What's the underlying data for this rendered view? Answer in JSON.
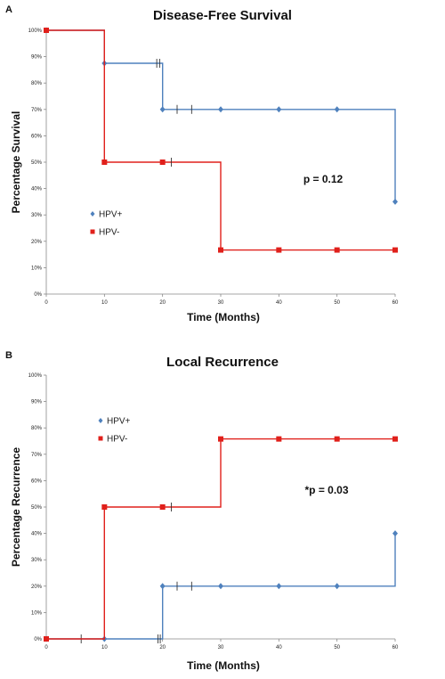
{
  "chart_data": [
    {
      "type": "line",
      "panel_label": "A",
      "title": "Disease-Free Survival",
      "xlabel": "Time (Months)",
      "ylabel": "Percentage Survival",
      "xlim": [
        0,
        60
      ],
      "ylim": [
        0,
        100
      ],
      "x_ticks": [
        "0",
        "10",
        "20",
        "30",
        "40",
        "50",
        "60"
      ],
      "y_ticks": [
        "0%",
        "10%",
        "20%",
        "30%",
        "40%",
        "50%",
        "60%",
        "70%",
        "80%",
        "90%",
        "100%"
      ],
      "annotation": "p = 0.12",
      "legend_position": "left-center",
      "series": [
        {
          "name": "HPV+",
          "color": "#4f81bd",
          "marker": "diamond",
          "step_points": [
            [
              0,
              100
            ],
            [
              10,
              100
            ],
            [
              10,
              87.5
            ],
            [
              20,
              87.5
            ],
            [
              20,
              70
            ],
            [
              60,
              70
            ],
            [
              60,
              35
            ]
          ],
          "markers": [
            [
              0,
              100
            ],
            [
              10,
              87.5
            ],
            [
              20,
              70
            ],
            [
              30,
              70
            ],
            [
              40,
              70
            ],
            [
              50,
              70
            ],
            [
              60,
              35
            ]
          ],
          "censored": [
            [
              19,
              87.5
            ],
            [
              19.5,
              87.5
            ],
            [
              22.5,
              70
            ],
            [
              25,
              70
            ]
          ]
        },
        {
          "name": "HPV-",
          "color": "#e0201b",
          "marker": "square",
          "step_points": [
            [
              0,
              100
            ],
            [
              10,
              100
            ],
            [
              10,
              50
            ],
            [
              30,
              50
            ],
            [
              30,
              16.7
            ],
            [
              60,
              16.7
            ]
          ],
          "markers": [
            [
              0,
              100
            ],
            [
              10,
              50
            ],
            [
              20,
              50
            ],
            [
              30,
              16.7
            ],
            [
              40,
              16.7
            ],
            [
              50,
              16.7
            ],
            [
              60,
              16.7
            ]
          ],
          "censored": [
            [
              21.5,
              50
            ]
          ]
        }
      ]
    },
    {
      "type": "line",
      "panel_label": "B",
      "title": "Local Recurrence",
      "xlabel": "Time (Months)",
      "ylabel": "Percentage Recurrence",
      "xlim": [
        0,
        60
      ],
      "ylim": [
        0,
        100
      ],
      "x_ticks": [
        "0",
        "10",
        "20",
        "30",
        "40",
        "50",
        "60"
      ],
      "y_ticks": [
        "0%",
        "10%",
        "20%",
        "30%",
        "40%",
        "50%",
        "60%",
        "70%",
        "80%",
        "90%",
        "100%"
      ],
      "annotation": "*p = 0.03",
      "legend_position": "top-left",
      "series": [
        {
          "name": "HPV+",
          "color": "#4f81bd",
          "marker": "diamond",
          "step_points": [
            [
              0,
              0
            ],
            [
              20,
              0
            ],
            [
              20,
              20
            ],
            [
              60,
              20
            ],
            [
              60,
              40
            ]
          ],
          "markers": [
            [
              0,
              0
            ],
            [
              10,
              0
            ],
            [
              20,
              20
            ],
            [
              30,
              20
            ],
            [
              40,
              20
            ],
            [
              50,
              20
            ],
            [
              60,
              40
            ]
          ],
          "censored": [
            [
              6,
              0
            ],
            [
              19.2,
              0
            ],
            [
              19.6,
              0
            ],
            [
              22.5,
              20
            ],
            [
              25,
              20
            ]
          ]
        },
        {
          "name": "HPV-",
          "color": "#e0201b",
          "marker": "square",
          "step_points": [
            [
              0,
              0
            ],
            [
              10,
              0
            ],
            [
              10,
              50
            ],
            [
              30,
              50
            ],
            [
              30,
              75.8
            ],
            [
              60,
              75.8
            ]
          ],
          "markers": [
            [
              0,
              0
            ],
            [
              10,
              50
            ],
            [
              20,
              50
            ],
            [
              30,
              75.8
            ],
            [
              40,
              75.8
            ],
            [
              50,
              75.8
            ],
            [
              60,
              75.8
            ]
          ],
          "censored": [
            [
              21.5,
              50
            ]
          ]
        }
      ]
    }
  ]
}
